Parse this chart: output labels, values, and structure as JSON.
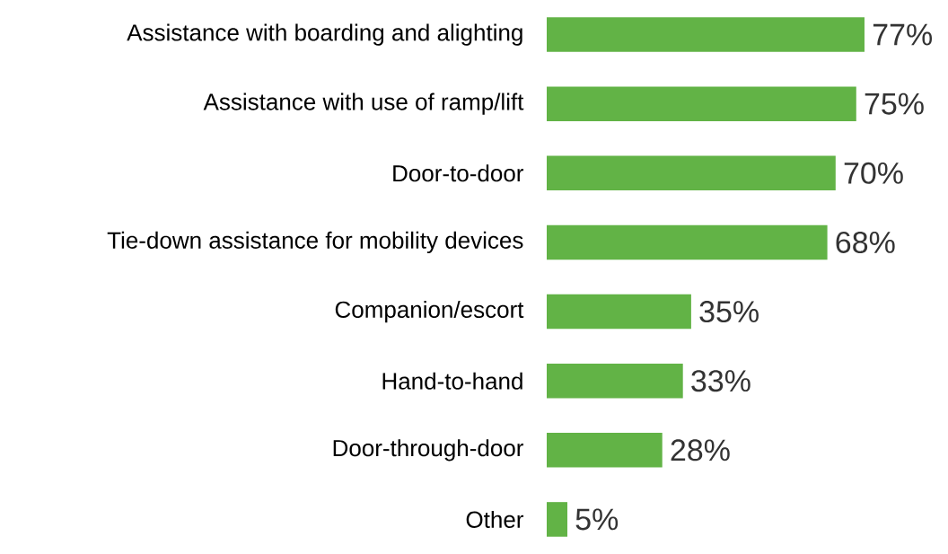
{
  "chart_data": {
    "type": "bar",
    "orientation": "horizontal",
    "categories": [
      "Assistance with boarding and alighting",
      "Assistance with use of ramp/lift",
      "Door-to-door",
      "Tie-down assistance for mobility devices",
      "Companion/escort",
      "Hand-to-hand",
      "Door-through-door",
      "Other"
    ],
    "values": [
      77,
      75,
      70,
      68,
      35,
      33,
      28,
      5
    ],
    "value_labels": [
      "77%",
      "75%",
      "70%",
      "68%",
      "35%",
      "33%",
      "28%",
      "5%"
    ],
    "color": "#62b346"
  }
}
